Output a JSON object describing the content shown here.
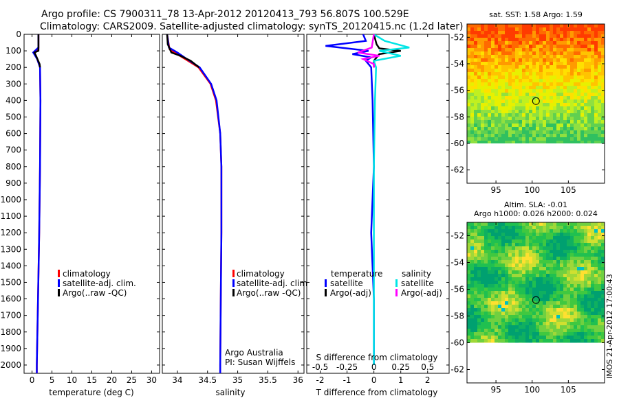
{
  "header": {
    "title_line1": "Argo profile: CS 7900311_78 13-Apr-2012 20120413_793 56.807S 100.529E",
    "title_line2": "Climatology: CARS2009. Satellite-adjusted climatology: synTS_20120415.nc (1.2d later)"
  },
  "colors": {
    "climatology": "#ff0000",
    "satellite": "#0000ff",
    "argo": "#000000",
    "sat_salinity": "#00e5e5",
    "argo_salinity_adj": "#ff00ff"
  },
  "chart_data": [
    {
      "type": "line",
      "name": "temperature-profile",
      "xlabel": "temperature (deg C)",
      "ylabel": "",
      "xlim": [
        -2,
        32
      ],
      "ylim": [
        2050,
        0
      ],
      "xticks": [
        0,
        5,
        10,
        15,
        20,
        25,
        30
      ],
      "yticks": [
        0,
        100,
        200,
        300,
        400,
        500,
        600,
        700,
        800,
        900,
        1000,
        1100,
        1200,
        1300,
        1400,
        1500,
        1600,
        1700,
        1800,
        1900,
        2000
      ],
      "legend": [
        "climatology",
        "satellite-adj. clim.",
        "Argo(..raw -QC)"
      ],
      "legend_position": "lower-right",
      "series": [
        {
          "name": "climatology",
          "color": "#ff0000",
          "depth": [
            0,
            90,
            110,
            150,
            200,
            400,
            800,
            1200,
            1600,
            2000,
            2050
          ],
          "values": [
            1.6,
            1.6,
            0.6,
            1.3,
            2.0,
            2.1,
            2.0,
            1.8,
            1.5,
            1.2,
            1.2
          ]
        },
        {
          "name": "satellite-adj. clim.",
          "color": "#0000ff",
          "depth": [
            0,
            80,
            110,
            150,
            200,
            400,
            800,
            1200,
            1600,
            2000,
            2050
          ],
          "values": [
            1.6,
            1.6,
            0.3,
            1.3,
            2.0,
            2.1,
            2.0,
            1.8,
            1.5,
            1.2,
            1.2
          ]
        },
        {
          "name": "Argo(..raw -QC)",
          "color": "#000000",
          "depth": [
            0,
            100,
            110,
            130,
            180,
            200
          ],
          "values": [
            1.6,
            1.6,
            0.6,
            1.0,
            1.9,
            2.0
          ]
        }
      ]
    },
    {
      "type": "line",
      "name": "salinity-profile",
      "xlabel": "salinity",
      "ylabel": "",
      "xlim": [
        33.75,
        36.1
      ],
      "ylim": [
        2050,
        0
      ],
      "xticks": [
        34,
        34.5,
        35,
        35.5,
        36
      ],
      "legend": [
        "climatology",
        "satellite-adj. clim.",
        "Argo(..raw -QC)"
      ],
      "legend_position": "lower-right",
      "annotation_lines": [
        "Argo Australia",
        "PI: Susan Wijffels"
      ],
      "series": [
        {
          "name": "climatology",
          "color": "#ff0000",
          "depth": [
            0,
            90,
            110,
            150,
            200,
            300,
            400,
            600,
            800,
            1200,
            1600,
            2000,
            2050
          ],
          "values": [
            33.83,
            33.87,
            33.95,
            34.13,
            34.35,
            34.55,
            34.64,
            34.71,
            34.73,
            34.73,
            34.72,
            34.71,
            34.71
          ]
        },
        {
          "name": "satellite-adj. clim.",
          "color": "#0000ff",
          "depth": [
            0,
            80,
            110,
            150,
            200,
            300,
            400,
            600,
            800,
            1200,
            1600,
            2000,
            2050
          ],
          "values": [
            33.83,
            33.86,
            34.0,
            34.16,
            34.37,
            34.56,
            34.65,
            34.71,
            34.73,
            34.73,
            34.72,
            34.71,
            34.71
          ]
        },
        {
          "name": "Argo(..raw -QC)",
          "color": "#000000",
          "depth": [
            0,
            60,
            110,
            130,
            160,
            200
          ],
          "values": [
            33.83,
            33.84,
            33.9,
            34.05,
            34.22,
            34.36
          ]
        }
      ]
    },
    {
      "type": "line",
      "name": "difference-from-climatology",
      "xlabel": "T difference from climatology",
      "top_label": "S difference from climatology",
      "xlim": [
        -2.5,
        2.8
      ],
      "ylim": [
        2050,
        0
      ],
      "xticks": [
        -2,
        -1,
        0,
        1,
        2
      ],
      "top_xticks_labels": [
        "-0.5",
        "-0.25",
        "0",
        "0.25",
        "0.5"
      ],
      "top_xticks_values": [
        -0.5,
        -0.25,
        0,
        0.25,
        0.5
      ],
      "legend_temperature_title": "temperature",
      "legend_salinity_title": "salinity",
      "legend": {
        "t_sat": "satellite",
        "t_argo": "Argo(-adj)",
        "s_sat": "satellite",
        "s_argo": "Argo(-adj)"
      },
      "series": [
        {
          "name": "temperature satellite",
          "color": "#0000ff",
          "depth": [
            0,
            40,
            70,
            85,
            100,
            120,
            140,
            160,
            200,
            400,
            800,
            1200,
            1600,
            2000
          ],
          "values": [
            -0.4,
            -0.3,
            -1.8,
            -1.0,
            -0.2,
            -0.8,
            -0.1,
            -0.3,
            -0.1,
            -0.05,
            0,
            -0.1,
            0,
            0
          ]
        },
        {
          "name": "temperature Argo(-adj)",
          "color": "#000000",
          "depth": [
            0,
            60,
            85,
            100,
            120,
            140,
            160,
            200
          ],
          "values": [
            0,
            0.1,
            0.2,
            1.0,
            0.2,
            0.1,
            0,
            0
          ]
        },
        {
          "name": "salinity satellite",
          "color": "#00e5e5",
          "depth": [
            0,
            40,
            80,
            100,
            130,
            160,
            200,
            400,
            800,
            1200,
            1600,
            2000
          ],
          "values": [
            0.0,
            0.1,
            0.33,
            0.05,
            0.25,
            0.0,
            0.02,
            0.01,
            0,
            0,
            0,
            0
          ]
        },
        {
          "name": "salinity Argo(-adj)",
          "color": "#ff00ff",
          "depth": [
            0,
            80,
            110,
            130,
            150,
            180,
            200
          ],
          "values": [
            0,
            -0.02,
            -0.15,
            0.05,
            -0.1,
            0,
            0
          ]
        }
      ]
    },
    {
      "type": "heatmap",
      "name": "sst-map",
      "title": "sat. SST: 1.58 Argo: 1.59",
      "xticks": [
        95,
        100,
        105
      ],
      "yticks": [
        -52,
        -54,
        -56,
        -58,
        -60,
        -62
      ],
      "xlim": [
        91,
        110
      ],
      "ylim": [
        -63,
        -51
      ],
      "data_extent_lat": [
        -60,
        -51
      ],
      "marker": {
        "lon": 100.529,
        "lat": -56.807
      }
    },
    {
      "type": "heatmap",
      "name": "sla-map",
      "title_line1": "Altim. SLA: -0.01",
      "title_line2": "Argo h1000: 0.026 h2000: 0.024",
      "xticks": [
        95,
        100,
        105
      ],
      "yticks": [
        -52,
        -54,
        -56,
        -58,
        -60,
        -62
      ],
      "xlim": [
        91,
        110
      ],
      "ylim": [
        -63,
        -51
      ],
      "data_extent_lat": [
        -60,
        -51
      ],
      "marker": {
        "lon": 100.529,
        "lat": -56.807
      }
    }
  ],
  "footer": {
    "stamp": "IMOS 21-Apr-2012 17:00:43"
  }
}
